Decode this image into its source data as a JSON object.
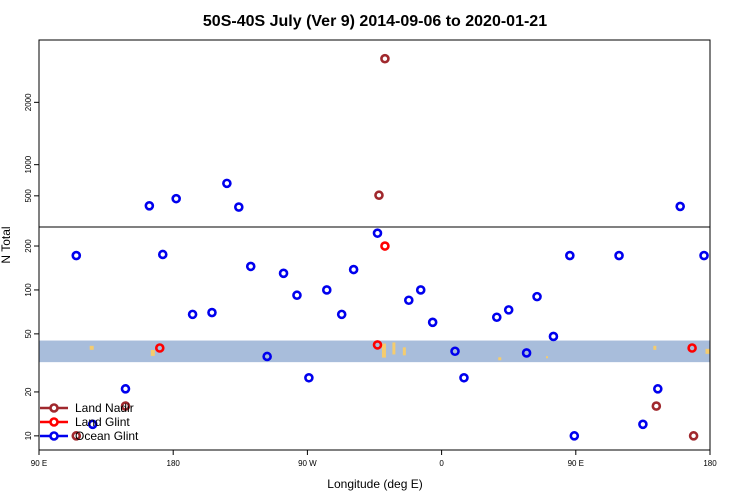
{
  "chart_data": {
    "type": "scatter",
    "title": "50S-40S July (Ver 9)   2014-09-06 to 2020-01-21",
    "xlabel": "Longitude (deg E)",
    "ylabel": "N Total",
    "x_ticks": [
      {
        "lon": 90,
        "label": "90 E"
      },
      {
        "lon": 180,
        "label": "180"
      },
      {
        "lon": 270,
        "label": "90 W"
      },
      {
        "lon": 360,
        "label": "0"
      },
      {
        "lon": 450,
        "label": "90 E"
      },
      {
        "lon": 540,
        "label": "180"
      }
    ],
    "xlim": [
      90,
      540
    ],
    "lower_panel": {
      "scale": "log",
      "ylim": [
        8,
        270
      ],
      "yticks": [
        {
          "value": 10,
          "label": "10"
        },
        {
          "value": 20,
          "label": "20"
        },
        {
          "value": 50,
          "label": "50"
        },
        {
          "value": 100,
          "label": "100"
        },
        {
          "value": 200,
          "label": "200"
        }
      ]
    },
    "upper_panel": {
      "scale": "linear",
      "ylim": [
        0,
        3000
      ],
      "yticks": [
        {
          "value": 500,
          "label": "500"
        },
        {
          "value": 1000,
          "label": "1000"
        },
        {
          "value": 2000,
          "label": "2000"
        }
      ]
    },
    "band": {
      "ymin": 32,
      "ymax": 45,
      "color": "#a8bddb"
    },
    "land_color": "#f5cc6e",
    "legend": {
      "position": "bottom-left"
    },
    "series": [
      {
        "name": "Land Nadir",
        "color": "#a0282d",
        "points": [
          [
            148,
            16
          ],
          [
            115,
            10
          ],
          [
            318,
            510
          ],
          [
            322,
            2700
          ],
          [
            504,
            16
          ],
          [
            529,
            10
          ]
        ]
      },
      {
        "name": "Land Glint",
        "color": "#ff0000",
        "points": [
          [
            322,
            200
          ],
          [
            317,
            42
          ],
          [
            171,
            40
          ],
          [
            528,
            40
          ]
        ]
      },
      {
        "name": "Ocean Glint",
        "color": "#0000ee",
        "points": [
          [
            115,
            172
          ],
          [
            126,
            12
          ],
          [
            148,
            21
          ],
          [
            164,
            340
          ],
          [
            173,
            175
          ],
          [
            182,
            455
          ],
          [
            193,
            68
          ],
          [
            206,
            70
          ],
          [
            216,
            700
          ],
          [
            224,
            320
          ],
          [
            232,
            145
          ],
          [
            243,
            35
          ],
          [
            254,
            130
          ],
          [
            263,
            92
          ],
          [
            271,
            25
          ],
          [
            283,
            100
          ],
          [
            293,
            68
          ],
          [
            301,
            138
          ],
          [
            317,
            245
          ],
          [
            338,
            85
          ],
          [
            346,
            100
          ],
          [
            354,
            60
          ],
          [
            369,
            38
          ],
          [
            375,
            25
          ],
          [
            397,
            65
          ],
          [
            405,
            73
          ],
          [
            417,
            37
          ],
          [
            424,
            90
          ],
          [
            435,
            48
          ],
          [
            446,
            172
          ],
          [
            449,
            10
          ],
          [
            479,
            172
          ],
          [
            495,
            12
          ],
          [
            505,
            21
          ],
          [
            520,
            330
          ],
          [
            536,
            172
          ]
        ]
      }
    ]
  }
}
